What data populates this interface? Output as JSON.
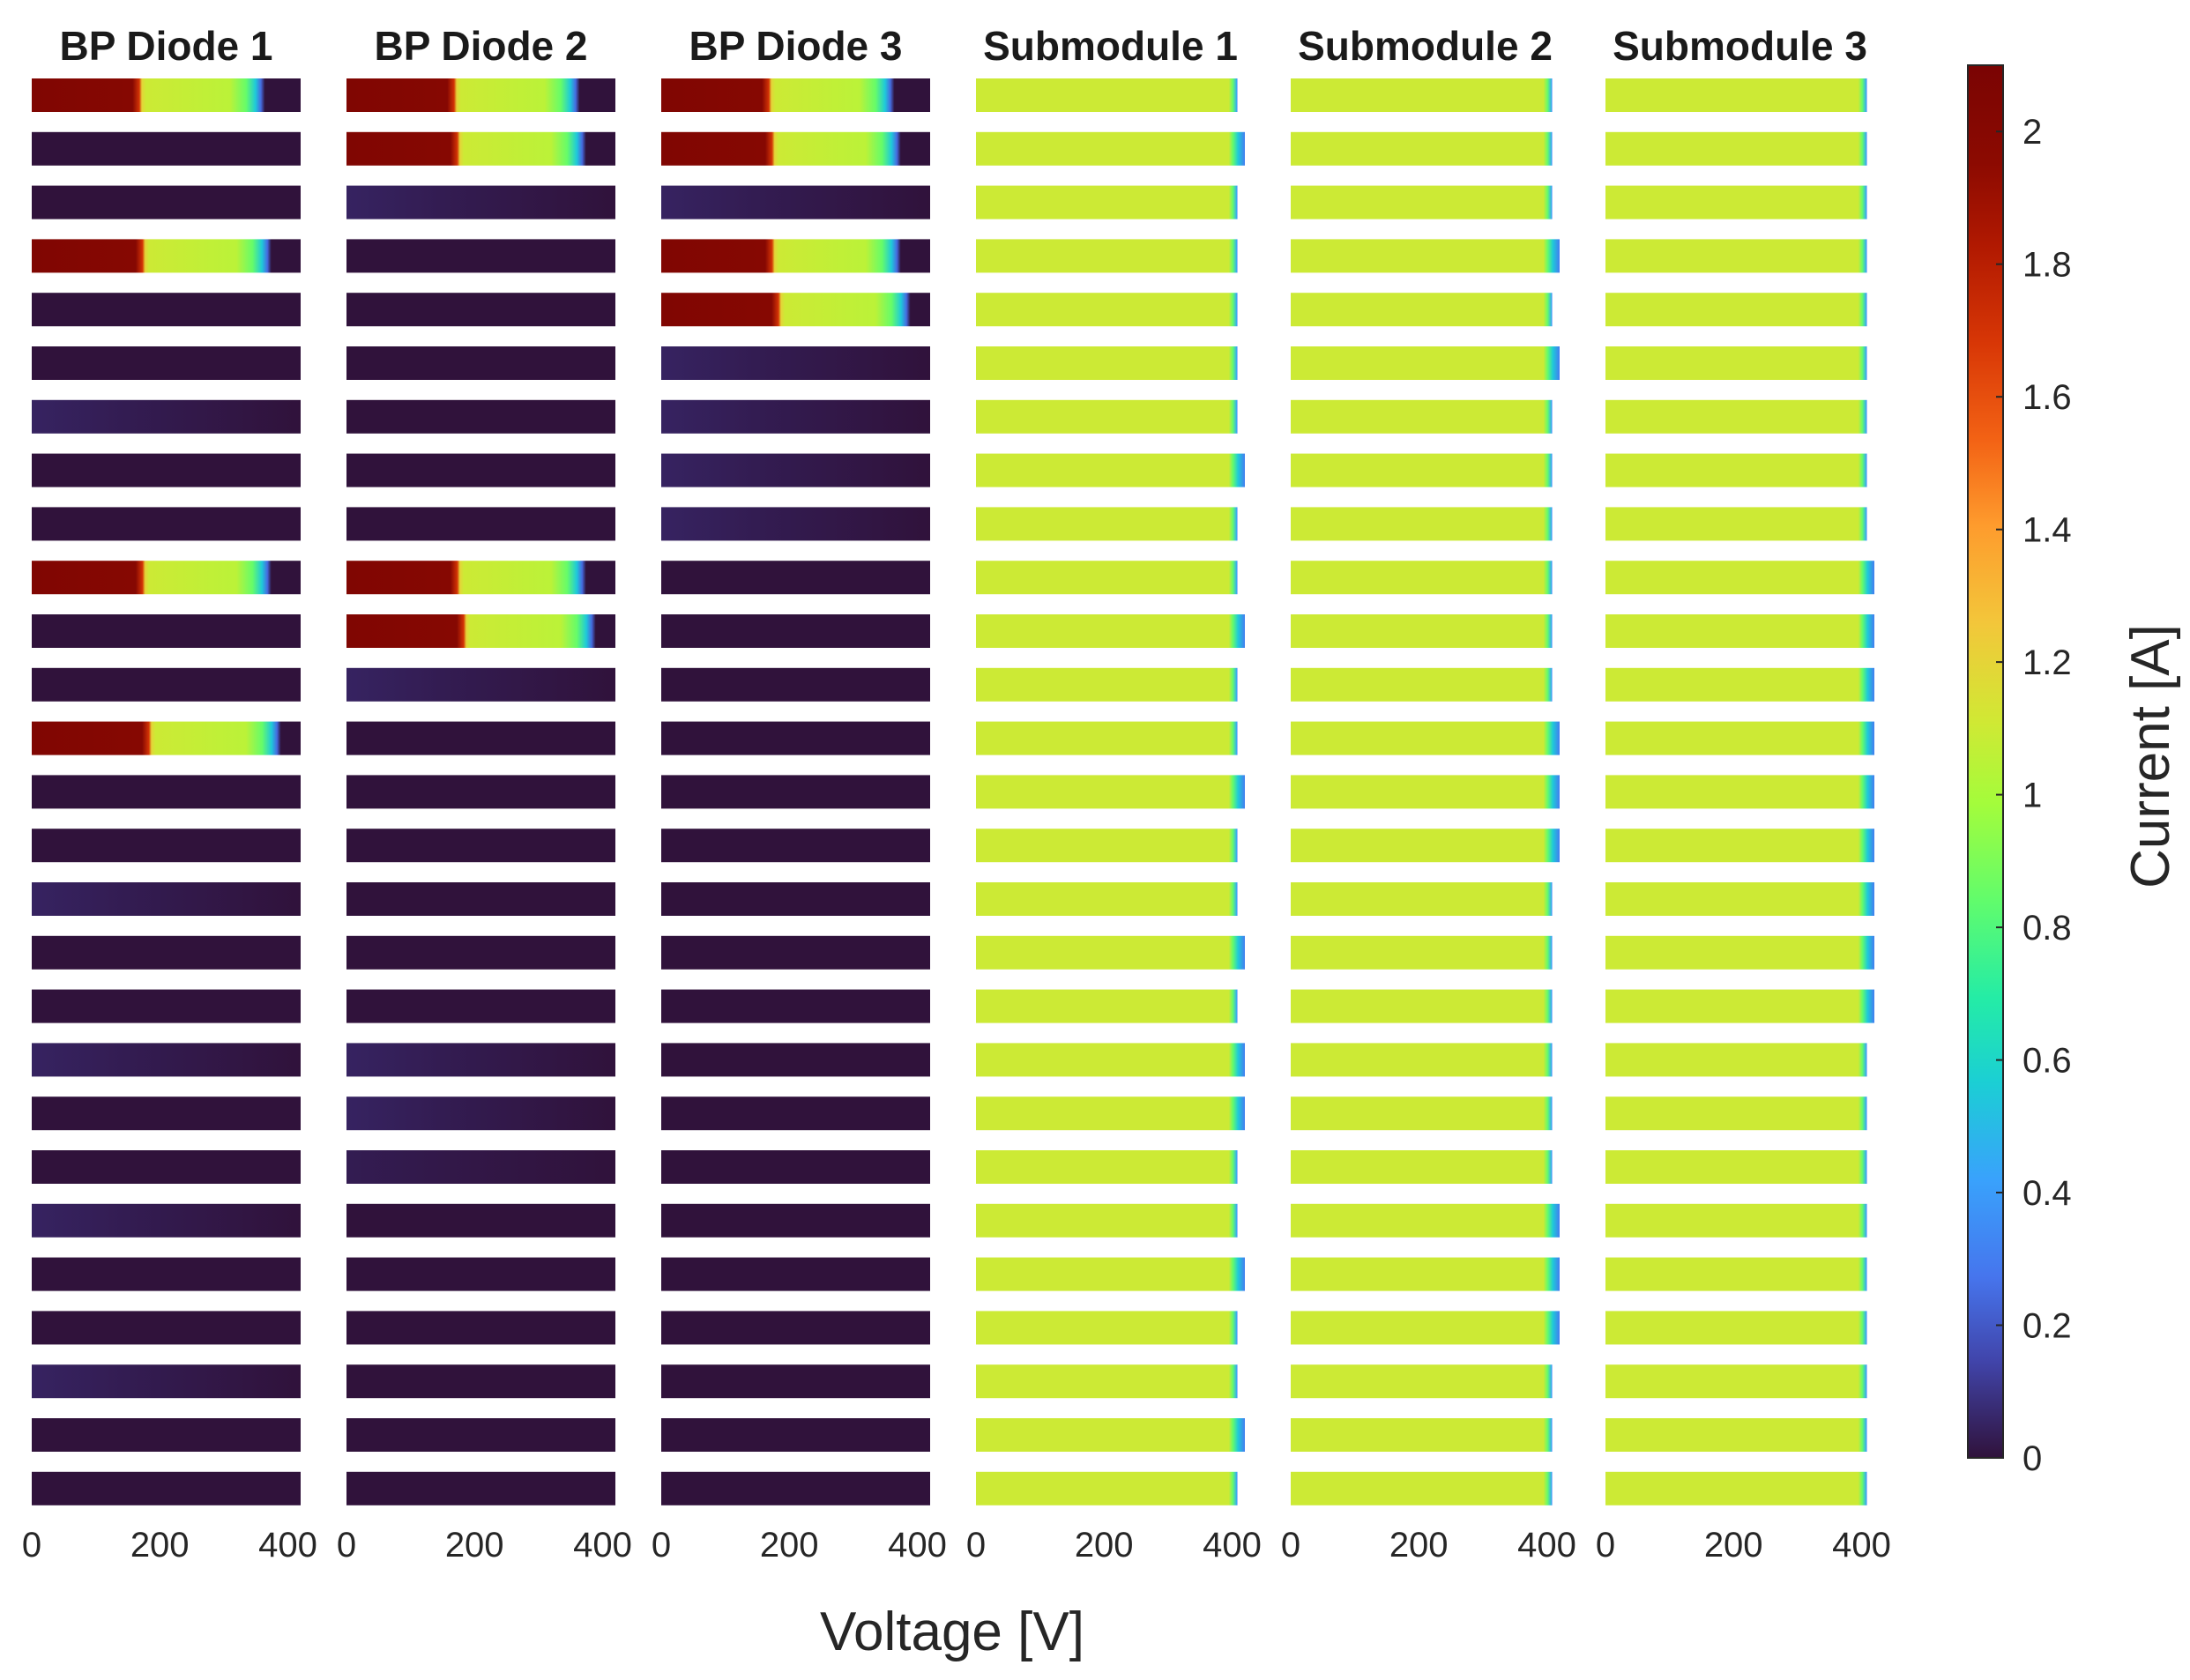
{
  "chart_data": {
    "type": "heatmap",
    "description_of_axes": "Each panel shows 27 rows (strings); each row is a color strip of current vs. voltage",
    "xlabel": "Voltage [V]",
    "colorbar_label": "Current [A]",
    "x_ticks": [
      0,
      200,
      400
    ],
    "x_range": [
      0,
      420
    ],
    "color_range": [
      0,
      2.1
    ],
    "colorbar_ticks": [
      0,
      0.2,
      0.4,
      0.6,
      0.8,
      1,
      1.2,
      1.4,
      1.6,
      1.8,
      2
    ],
    "colorbar_tick_labels": [
      "0",
      "0.2",
      "0.4",
      "0.6",
      "0.8",
      "1",
      "1.2",
      "1.4",
      "1.6",
      "1.8",
      "2"
    ],
    "colormap": "turbo",
    "row_count": 27,
    "panels": [
      {
        "title": "BP Diode 1",
        "kind": "diode",
        "rows": [
          {
            "active": true,
            "knee_v": 170,
            "end_v": 360,
            "base": 0
          },
          {
            "active": false,
            "base": 0
          },
          {
            "active": false,
            "base": 0
          },
          {
            "active": true,
            "knee_v": 175,
            "end_v": 370,
            "base": 0
          },
          {
            "active": false,
            "base": 0
          },
          {
            "active": false,
            "base": 0
          },
          {
            "active": false,
            "base": 0.05
          },
          {
            "active": false,
            "base": 0
          },
          {
            "active": false,
            "base": 0
          },
          {
            "active": true,
            "knee_v": 175,
            "end_v": 370,
            "base": 0
          },
          {
            "active": false,
            "base": 0
          },
          {
            "active": false,
            "base": 0
          },
          {
            "active": true,
            "knee_v": 185,
            "end_v": 385,
            "base": 0
          },
          {
            "active": false,
            "base": 0
          },
          {
            "active": false,
            "base": 0
          },
          {
            "active": false,
            "base": 0.05
          },
          {
            "active": false,
            "base": 0
          },
          {
            "active": false,
            "base": 0
          },
          {
            "active": false,
            "base": 0.05
          },
          {
            "active": false,
            "base": 0
          },
          {
            "active": false,
            "base": 0
          },
          {
            "active": false,
            "base": 0.05
          },
          {
            "active": false,
            "base": 0
          },
          {
            "active": false,
            "base": 0
          },
          {
            "active": false,
            "base": 0.05
          },
          {
            "active": false,
            "base": 0
          },
          {
            "active": false,
            "base": 0
          }
        ]
      },
      {
        "title": "BP Diode 2",
        "kind": "diode",
        "rows": [
          {
            "active": true,
            "knee_v": 170,
            "end_v": 360,
            "base": 0
          },
          {
            "active": true,
            "knee_v": 175,
            "end_v": 370,
            "base": 0
          },
          {
            "active": false,
            "base": 0.05
          },
          {
            "active": false,
            "base": 0
          },
          {
            "active": false,
            "base": 0
          },
          {
            "active": false,
            "base": 0
          },
          {
            "active": false,
            "base": 0
          },
          {
            "active": false,
            "base": 0
          },
          {
            "active": false,
            "base": 0
          },
          {
            "active": true,
            "knee_v": 175,
            "end_v": 370,
            "base": 0
          },
          {
            "active": true,
            "knee_v": 185,
            "end_v": 385,
            "base": 0
          },
          {
            "active": false,
            "base": 0.05
          },
          {
            "active": false,
            "base": 0
          },
          {
            "active": false,
            "base": 0
          },
          {
            "active": false,
            "base": 0
          },
          {
            "active": false,
            "base": 0
          },
          {
            "active": false,
            "base": 0
          },
          {
            "active": false,
            "base": 0
          },
          {
            "active": false,
            "base": 0.05
          },
          {
            "active": false,
            "base": 0.05
          },
          {
            "active": false,
            "base": 0.03
          },
          {
            "active": false,
            "base": 0
          },
          {
            "active": false,
            "base": 0
          },
          {
            "active": false,
            "base": 0
          },
          {
            "active": false,
            "base": 0
          },
          {
            "active": false,
            "base": 0
          },
          {
            "active": false,
            "base": 0
          }
        ]
      },
      {
        "title": "BP Diode 3",
        "kind": "diode",
        "rows": [
          {
            "active": true,
            "knee_v": 170,
            "end_v": 360,
            "base": 0
          },
          {
            "active": true,
            "knee_v": 175,
            "end_v": 370,
            "base": 0
          },
          {
            "active": false,
            "base": 0.05
          },
          {
            "active": true,
            "knee_v": 175,
            "end_v": 370,
            "base": 0
          },
          {
            "active": true,
            "knee_v": 185,
            "end_v": 385,
            "base": 0
          },
          {
            "active": false,
            "base": 0.05
          },
          {
            "active": false,
            "base": 0.05
          },
          {
            "active": false,
            "base": 0.05
          },
          {
            "active": false,
            "base": 0.05
          },
          {
            "active": false,
            "base": 0
          },
          {
            "active": false,
            "base": 0
          },
          {
            "active": false,
            "base": 0
          },
          {
            "active": false,
            "base": 0
          },
          {
            "active": false,
            "base": 0
          },
          {
            "active": false,
            "base": 0
          },
          {
            "active": false,
            "base": 0
          },
          {
            "active": false,
            "base": 0
          },
          {
            "active": false,
            "base": 0
          },
          {
            "active": false,
            "base": 0
          },
          {
            "active": false,
            "base": 0
          },
          {
            "active": false,
            "base": 0
          },
          {
            "active": false,
            "base": 0
          },
          {
            "active": false,
            "base": 0
          },
          {
            "active": false,
            "base": 0
          },
          {
            "active": false,
            "base": 0
          },
          {
            "active": false,
            "base": 0
          },
          {
            "active": false,
            "base": 0
          }
        ]
      },
      {
        "title": "Submodule 1",
        "kind": "submodule",
        "rows": [
          {
            "level": 1.1,
            "end_v": 405
          },
          {
            "level": 1.1,
            "end_v": 420
          },
          {
            "level": 1.1,
            "end_v": 405
          },
          {
            "level": 1.1,
            "end_v": 405
          },
          {
            "level": 1.1,
            "end_v": 405
          },
          {
            "level": 1.1,
            "end_v": 405
          },
          {
            "level": 1.1,
            "end_v": 405
          },
          {
            "level": 1.1,
            "end_v": 420
          },
          {
            "level": 1.1,
            "end_v": 405
          },
          {
            "level": 1.1,
            "end_v": 405
          },
          {
            "level": 1.1,
            "end_v": 420
          },
          {
            "level": 1.1,
            "end_v": 405
          },
          {
            "level": 1.1,
            "end_v": 405
          },
          {
            "level": 1.1,
            "end_v": 420
          },
          {
            "level": 1.1,
            "end_v": 405
          },
          {
            "level": 1.1,
            "end_v": 405
          },
          {
            "level": 1.1,
            "end_v": 420
          },
          {
            "level": 1.1,
            "end_v": 405
          },
          {
            "level": 1.1,
            "end_v": 420
          },
          {
            "level": 1.1,
            "end_v": 420
          },
          {
            "level": 1.1,
            "end_v": 405
          },
          {
            "level": 1.1,
            "end_v": 405
          },
          {
            "level": 1.1,
            "end_v": 420
          },
          {
            "level": 1.1,
            "end_v": 405
          },
          {
            "level": 1.1,
            "end_v": 405
          },
          {
            "level": 1.1,
            "end_v": 420
          },
          {
            "level": 1.1,
            "end_v": 405
          }
        ]
      },
      {
        "title": "Submodule 2",
        "kind": "submodule",
        "rows": [
          {
            "level": 1.1,
            "end_v": 405
          },
          {
            "level": 1.1,
            "end_v": 405
          },
          {
            "level": 1.1,
            "end_v": 405
          },
          {
            "level": 1.1,
            "end_v": 420
          },
          {
            "level": 1.1,
            "end_v": 405
          },
          {
            "level": 1.1,
            "end_v": 420
          },
          {
            "level": 1.1,
            "end_v": 405
          },
          {
            "level": 1.1,
            "end_v": 405
          },
          {
            "level": 1.1,
            "end_v": 405
          },
          {
            "level": 1.1,
            "end_v": 405
          },
          {
            "level": 1.1,
            "end_v": 405
          },
          {
            "level": 1.1,
            "end_v": 405
          },
          {
            "level": 1.1,
            "end_v": 420
          },
          {
            "level": 1.1,
            "end_v": 420
          },
          {
            "level": 1.1,
            "end_v": 420
          },
          {
            "level": 1.1,
            "end_v": 405
          },
          {
            "level": 1.1,
            "end_v": 405
          },
          {
            "level": 1.1,
            "end_v": 405
          },
          {
            "level": 1.1,
            "end_v": 405
          },
          {
            "level": 1.1,
            "end_v": 405
          },
          {
            "level": 1.1,
            "end_v": 405
          },
          {
            "level": 1.1,
            "end_v": 420
          },
          {
            "level": 1.1,
            "end_v": 420
          },
          {
            "level": 1.1,
            "end_v": 420
          },
          {
            "level": 1.1,
            "end_v": 405
          },
          {
            "level": 1.1,
            "end_v": 405
          },
          {
            "level": 1.1,
            "end_v": 405
          }
        ]
      },
      {
        "title": "Submodule 3",
        "kind": "submodule",
        "rows": [
          {
            "level": 1.1,
            "end_v": 405
          },
          {
            "level": 1.1,
            "end_v": 405
          },
          {
            "level": 1.1,
            "end_v": 405
          },
          {
            "level": 1.1,
            "end_v": 405
          },
          {
            "level": 1.1,
            "end_v": 405
          },
          {
            "level": 1.1,
            "end_v": 405
          },
          {
            "level": 1.1,
            "end_v": 405
          },
          {
            "level": 1.1,
            "end_v": 405
          },
          {
            "level": 1.1,
            "end_v": 405
          },
          {
            "level": 1.1,
            "end_v": 420
          },
          {
            "level": 1.1,
            "end_v": 420
          },
          {
            "level": 1.1,
            "end_v": 420
          },
          {
            "level": 1.1,
            "end_v": 420
          },
          {
            "level": 1.1,
            "end_v": 420
          },
          {
            "level": 1.1,
            "end_v": 420
          },
          {
            "level": 1.1,
            "end_v": 420
          },
          {
            "level": 1.1,
            "end_v": 420
          },
          {
            "level": 1.1,
            "end_v": 420
          },
          {
            "level": 1.1,
            "end_v": 405
          },
          {
            "level": 1.1,
            "end_v": 405
          },
          {
            "level": 1.1,
            "end_v": 405
          },
          {
            "level": 1.1,
            "end_v": 405
          },
          {
            "level": 1.1,
            "end_v": 405
          },
          {
            "level": 1.1,
            "end_v": 405
          },
          {
            "level": 1.1,
            "end_v": 405
          },
          {
            "level": 1.1,
            "end_v": 405
          },
          {
            "level": 1.1,
            "end_v": 405
          }
        ]
      }
    ]
  }
}
